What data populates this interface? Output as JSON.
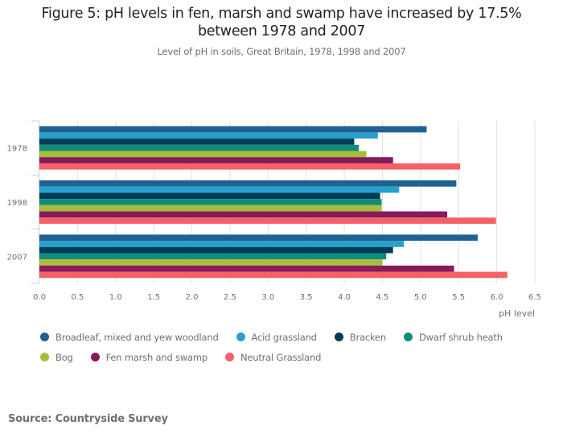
{
  "header": {
    "title_line1": "Figure 5: pH levels in fen, marsh and swamp have increased by 17.5%",
    "title_line2": "between 1978 and 2007",
    "subtitle": "Level of pH in soils, Great Britain, 1978, 1998 and 2007"
  },
  "chart_data": {
    "type": "bar",
    "orientation": "horizontal",
    "title": "Figure 5: pH levels in fen, marsh and swamp have increased by 17.5% between 1978 and 2007",
    "subtitle": "Level of pH in soils, Great Britain, 1978, 1998 and 2007",
    "xlabel": "pH level",
    "ylabel": "",
    "xlim": [
      0,
      6.5
    ],
    "x_ticks": [
      "0.0",
      "0.5",
      "1.0",
      "1.5",
      "2.0",
      "2.5",
      "3.0",
      "3.5",
      "4.0",
      "4.5",
      "5.0",
      "5.5",
      "6.0",
      "6.5"
    ],
    "grid": true,
    "legend_position": "bottom",
    "categories": [
      "1978",
      "1998",
      "2007"
    ],
    "series": [
      {
        "name": "Broadleaf, mixed and yew woodland",
        "color": "#206095",
        "values": [
          5.08,
          5.47,
          5.75
        ]
      },
      {
        "name": "Acid grassland",
        "color": "#27a0cc",
        "values": [
          4.44,
          4.72,
          4.78
        ]
      },
      {
        "name": "Bracken",
        "color": "#003c57",
        "values": [
          4.13,
          4.47,
          4.64
        ]
      },
      {
        "name": "Dwarf shrub heath",
        "color": "#118c7b",
        "values": [
          4.19,
          4.49,
          4.55
        ]
      },
      {
        "name": "Bog",
        "color": "#a8bd3a",
        "values": [
          4.29,
          4.49,
          4.5
        ]
      },
      {
        "name": "Fen marsh and swamp",
        "color": "#871a5b",
        "values": [
          4.64,
          5.35,
          5.44
        ]
      },
      {
        "name": "Neutral Grassland",
        "color": "#f66068",
        "values": [
          5.52,
          5.99,
          6.14
        ]
      }
    ]
  },
  "legend": {
    "rows": [
      [
        0,
        1,
        2,
        3
      ],
      [
        4,
        5,
        6
      ]
    ]
  },
  "source": "Source: Countryside Survey"
}
